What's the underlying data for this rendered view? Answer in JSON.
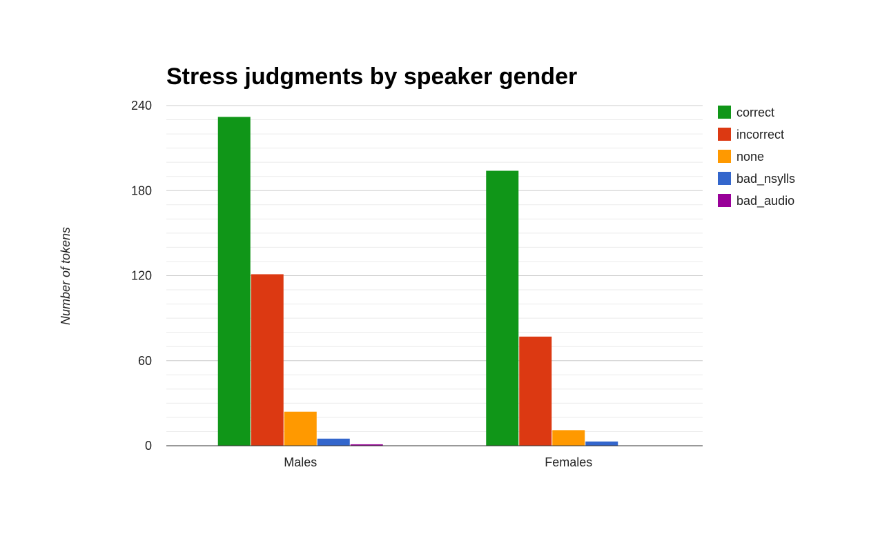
{
  "chart_data": {
    "type": "bar",
    "title": "Stress judgments by speaker gender",
    "xlabel": "",
    "ylabel": "Number of tokens",
    "categories": [
      "Males",
      "Females"
    ],
    "series": [
      {
        "name": "correct",
        "color": "#109618",
        "values": [
          232,
          194
        ]
      },
      {
        "name": "incorrect",
        "color": "#dc3912",
        "values": [
          121,
          77
        ]
      },
      {
        "name": "none",
        "color": "#ff9900",
        "values": [
          24,
          11
        ]
      },
      {
        "name": "bad_nsylls",
        "color": "#3366cc",
        "values": [
          5,
          3
        ]
      },
      {
        "name": "bad_audio",
        "color": "#990099",
        "values": [
          1,
          0
        ]
      }
    ],
    "ylim": [
      0,
      240
    ],
    "yticks": [
      "0",
      "60",
      "120",
      "180",
      "240"
    ],
    "grid": true,
    "legend_position": "right"
  }
}
